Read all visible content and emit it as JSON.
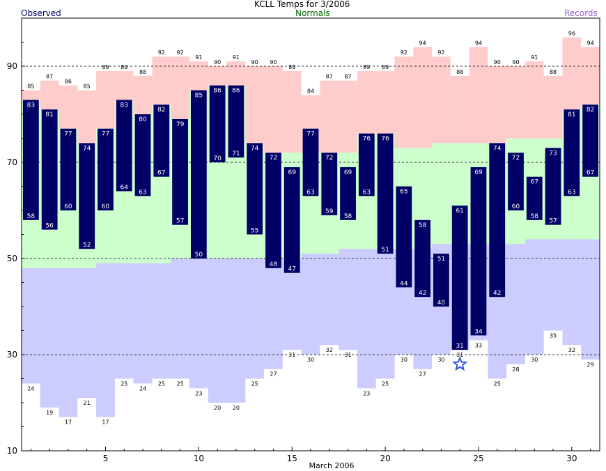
{
  "header": {
    "observed_label": "Observed",
    "title": "KCLL Temps for 3/2006",
    "normals_label": "Normals",
    "records_label": "Records"
  },
  "colors": {
    "observed": "#000066",
    "record_high": "#ffcccc",
    "normal_band": "#ccffcc",
    "record_low": "#ccccff",
    "normals_text": "#006600",
    "records_text": "#9966cc",
    "marker": "#3355dd"
  },
  "chart_data": {
    "type": "bar",
    "title": "KCLL Temps for 3/2006",
    "xlabel": "March 2006",
    "ylabel": "",
    "xlim": [
      0.5,
      31.5
    ],
    "ylim": [
      10,
      100
    ],
    "x_ticks": [
      5,
      10,
      15,
      20,
      25,
      30
    ],
    "y_ticks": [
      10,
      30,
      50,
      70,
      90
    ],
    "grid_y": [
      30,
      50,
      70,
      90
    ],
    "days": [
      1,
      2,
      3,
      4,
      5,
      6,
      7,
      8,
      9,
      10,
      11,
      12,
      13,
      14,
      15,
      16,
      17,
      18,
      19,
      20,
      21,
      22,
      23,
      24,
      25,
      26,
      27,
      28,
      29,
      30,
      31
    ],
    "series": [
      {
        "name": "Observed",
        "role": "observed_high",
        "values": [
          83,
          81,
          77,
          74,
          77,
          83,
          80,
          82,
          79,
          85,
          86,
          86,
          74,
          72,
          69,
          77,
          72,
          69,
          76,
          76,
          65,
          58,
          51,
          61,
          69,
          74,
          72,
          67,
          73,
          81,
          82
        ]
      },
      {
        "name": "Observed",
        "role": "observed_low",
        "values": [
          58,
          56,
          60,
          52,
          60,
          64,
          63,
          67,
          57,
          50,
          70,
          71,
          55,
          48,
          47,
          63,
          59,
          58,
          63,
          51,
          44,
          42,
          40,
          31,
          34,
          42,
          60,
          58,
          57,
          63,
          67
        ]
      },
      {
        "name": "Records",
        "role": "record_high",
        "values": [
          85,
          87,
          86,
          85,
          89,
          89,
          88,
          92,
          92,
          91,
          90,
          91,
          90,
          90,
          89,
          84,
          87,
          87,
          89,
          89,
          92,
          94,
          92,
          88,
          94,
          90,
          90,
          91,
          88,
          96,
          94
        ]
      },
      {
        "name": "Records",
        "role": "record_low",
        "values": [
          24,
          19,
          17,
          21,
          17,
          25,
          24,
          25,
          25,
          23,
          20,
          20,
          25,
          27,
          31,
          30,
          32,
          31,
          23,
          25,
          30,
          27,
          30,
          31,
          33,
          25,
          28,
          30,
          35,
          32,
          29
        ]
      },
      {
        "name": "Normals",
        "role": "normal_high",
        "values": [
          null,
          null,
          null,
          null,
          null,
          null,
          null,
          null,
          null,
          null,
          null,
          null,
          null,
          null,
          72,
          72,
          72,
          72,
          null,
          null,
          73,
          73,
          74,
          74,
          74,
          74,
          75,
          75,
          75,
          null,
          null
        ]
      },
      {
        "name": "Normals",
        "role": "normal_low",
        "values": [
          48,
          48,
          48,
          48,
          49,
          49,
          49,
          49,
          50,
          50,
          50,
          50,
          50,
          50,
          50,
          51,
          51,
          52,
          52,
          52,
          52,
          52,
          53,
          53,
          53,
          53,
          53,
          54,
          54,
          54,
          54
        ]
      }
    ],
    "annotations": [
      {
        "type": "star",
        "x": 24,
        "y": 28
      }
    ]
  }
}
